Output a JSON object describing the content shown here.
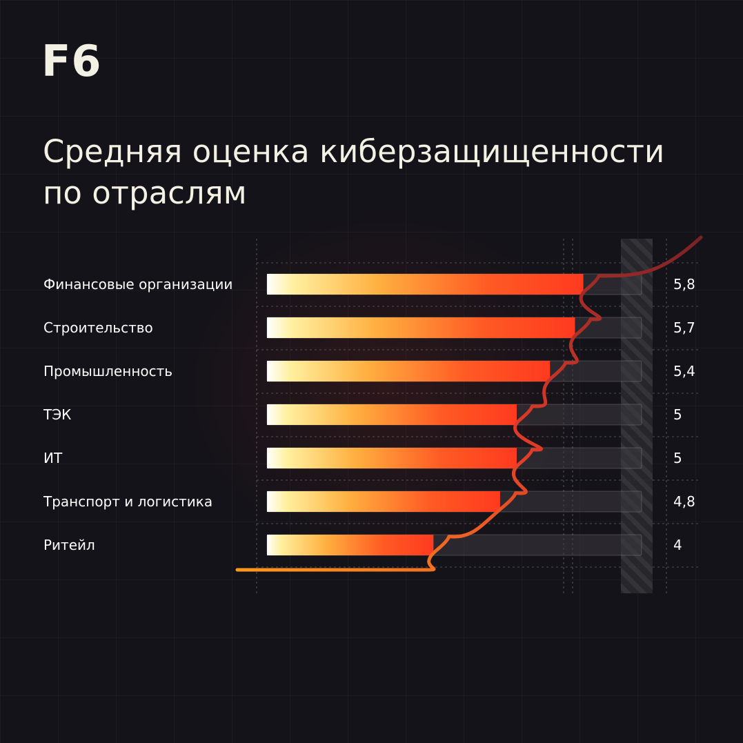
{
  "brand": {
    "logo_text": "F6"
  },
  "title": {
    "line1": "Средняя оценка киберзащищенности",
    "line2": "по отраслям"
  },
  "colors": {
    "background": "#141319",
    "text": "#f3f0e4",
    "bar_start": "#fff3b0",
    "bar_mid": "#ffa030",
    "bar_end": "#ff3a1f",
    "track": "#2b2a2f",
    "curve": "#e8402a"
  },
  "chart_data": {
    "type": "bar",
    "orientation": "horizontal",
    "title": "Средняя оценка киберзащищенности по отраслям",
    "categories": [
      "Финансовые организации",
      "Строительство",
      "Промышленность",
      "ТЭК",
      "ИТ",
      "Транспорт и логистика",
      "Ритейл"
    ],
    "values": [
      5.8,
      5.7,
      5.4,
      5.0,
      5.0,
      4.8,
      4.0
    ],
    "value_labels": [
      "5,8",
      "5,7",
      "5,4",
      "5",
      "5",
      "4,8",
      "4"
    ],
    "xlim": [
      2,
      6.5
    ],
    "grid": true,
    "legend": "none"
  }
}
